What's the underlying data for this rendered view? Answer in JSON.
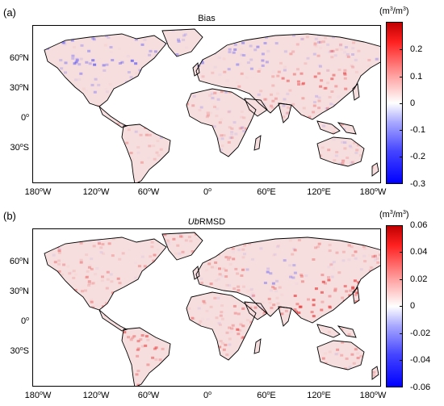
{
  "figure": {
    "panels": [
      {
        "label": "(a)",
        "title": "Bias",
        "title_italic_prefix": "",
        "colorbar_unit": "(m3/m3)",
        "colorbar_ticks": [
          "0.2",
          "0.1",
          "0",
          "-0.1",
          "-0.2",
          "-0.3"
        ],
        "colorbar_range": [
          -0.3,
          0.3
        ]
      },
      {
        "label": "(b)",
        "title": "RMSD",
        "title_italic_prefix": "Ub",
        "colorbar_unit": "(m3/m3)",
        "colorbar_ticks": [
          "0.06",
          "0.04",
          "0.02",
          "0",
          "-0.02",
          "-0.04",
          "-0.06"
        ],
        "colorbar_range": [
          -0.06,
          0.06
        ]
      }
    ],
    "lat_labels": [
      "60°N",
      "30°N",
      "0°",
      "30°S"
    ],
    "lon_labels": [
      "180°W",
      "120°W",
      "60°W",
      "0°",
      "60°E",
      "120°E",
      "180°W"
    ],
    "colormap": {
      "negative": "#0000ff",
      "zero": "#ffffff",
      "positive": "#e00000"
    }
  }
}
